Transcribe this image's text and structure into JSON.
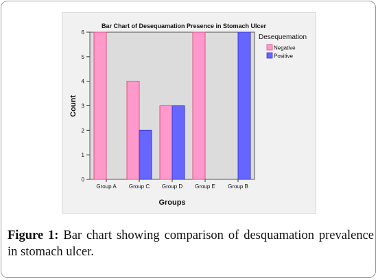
{
  "caption": {
    "label": "Figure 1:",
    "text": "Bar chart showing comparison of desquamation prevalence in stomach ulcer."
  },
  "chart_data": {
    "type": "bar",
    "title": "Bar Chart of Desequamation Presence in Stomach Ulcer",
    "xlabel": "Groups",
    "ylabel": "Count",
    "categories": [
      "Group A",
      "Group C",
      "Group D",
      "Group E",
      "Group B"
    ],
    "series": [
      {
        "name": "Negative",
        "values": [
          6,
          4,
          3,
          6,
          0
        ],
        "color": "#ff99cc",
        "stroke": "#e0507f"
      },
      {
        "name": "Positive",
        "values": [
          0,
          2,
          3,
          0,
          6
        ],
        "color": "#6666ff",
        "stroke": "#3b3bd0"
      }
    ],
    "ylim": [
      0,
      6
    ],
    "yticks": [
      0,
      1,
      2,
      3,
      4,
      5,
      6
    ],
    "legend_title": "Desequemation",
    "legend_position": "right",
    "grid": false,
    "background": "#f1f1f1",
    "plot_background": "#dcdcdc"
  }
}
